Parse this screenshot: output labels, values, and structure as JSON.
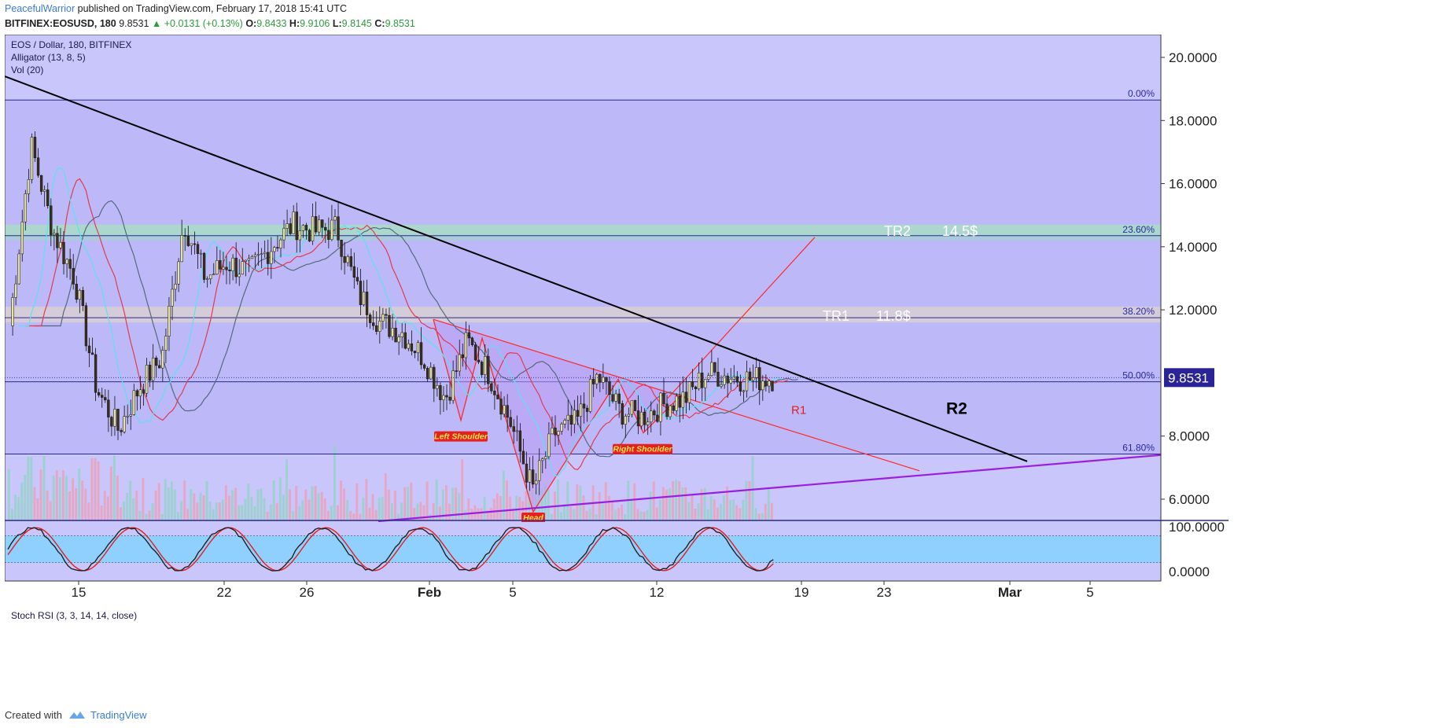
{
  "header": {
    "author": "PeacefulWarrior",
    "published_text": "published on TradingView.com, February 17, 2018 15:41 UTC",
    "symbol_line_prefix": "BITFINEX:EOSUSD, 180",
    "last": "9.8531",
    "change": "▲ +0.0131 (+0.13%)",
    "o_label": "O:",
    "o": "9.8433",
    "h_label": "H:",
    "h": "9.9106",
    "l_label": "L:",
    "l": "9.8145",
    "c_label": "C:",
    "c": "9.8531"
  },
  "legend": {
    "title": "EOS / Dollar, 180, BITFINEX",
    "indicator1": "Alligator (13, 8, 5)",
    "indicator2": "Vol (20)",
    "oscillator": "Stoch RSI (3, 3, 14, 14, close)"
  },
  "price_axis": {
    "ticks": [
      "20.0000",
      "18.0000",
      "16.0000",
      "14.0000",
      "12.0000",
      "8.0000",
      "6.0000"
    ],
    "tick_values": [
      20,
      18,
      16,
      14,
      12,
      8,
      6
    ],
    "current_price": "9.8531",
    "current_value": 9.8531
  },
  "osc_axis": {
    "ticks": [
      "100.0000",
      "0.0000"
    ],
    "tick_values": [
      100,
      0
    ]
  },
  "time_axis": {
    "labels": [
      "15",
      "22",
      "26",
      "Feb",
      "5",
      "12",
      "19",
      "23",
      "Mar",
      "5"
    ],
    "bold": [
      false,
      false,
      false,
      true,
      false,
      false,
      false,
      false,
      true,
      false
    ]
  },
  "fib_levels": [
    {
      "label": "0.00%",
      "value": 18.65
    },
    {
      "label": "23.60%",
      "value": 14.35
    },
    {
      "label": "38.20%",
      "value": 11.75
    },
    {
      "label": "50.00%",
      "value": 9.72
    },
    {
      "label": "61.80%",
      "value": 7.43
    }
  ],
  "annotations": {
    "tr2": "TR2",
    "tr2_price": "14.5$",
    "tr1": "TR1",
    "tr1_price": "11.8$",
    "r1": "R1",
    "r2": "R2",
    "left_shoulder": "Left Shoulder",
    "right_shoulder": "Right Shoulder",
    "head": "Head"
  },
  "colors": {
    "background": "#c8c6fa",
    "fib_zone": "#bdb8f7",
    "tr_band_green": "#a8dcc8",
    "tr_band_gray": "#d9cfd3",
    "trendline": "#000000",
    "neckline": "#ff2a2a",
    "support": "#9b1ee0",
    "osc_band": "#8fd0ff",
    "price_tag": "#2a2496"
  },
  "chart_data": {
    "type": "candlestick",
    "title": "EOS / Dollar, 180, BITFINEX",
    "close_series_approx": {
      "x": [
        "Jan 13",
        "Jan 14",
        "Jan 15",
        "Jan 16",
        "Jan 17",
        "Jan 18",
        "Jan 19",
        "Jan 20",
        "Jan 21",
        "Jan 22",
        "Jan 23",
        "Jan 24",
        "Jan 25",
        "Jan 26",
        "Jan 27",
        "Jan 28",
        "Jan 29",
        "Jan 30",
        "Jan 31",
        "Feb 1",
        "Feb 2",
        "Feb 3",
        "Feb 4",
        "Feb 5",
        "Feb 6",
        "Feb 7",
        "Feb 8",
        "Feb 9",
        "Feb 10",
        "Feb 11",
        "Feb 12",
        "Feb 13",
        "Feb 14",
        "Feb 15",
        "Feb 16",
        "Feb 17"
      ],
      "y": [
        11.5,
        17.2,
        14.5,
        13.0,
        9.5,
        8.2,
        9.6,
        10.5,
        14.8,
        13.0,
        13.5,
        13.2,
        14.0,
        14.7,
        14.5,
        14.6,
        12.5,
        11.6,
        11.3,
        10.5,
        9.2,
        11.0,
        10.0,
        8.4,
        6.3,
        8.1,
        8.4,
        9.9,
        8.8,
        8.6,
        9.0,
        9.2,
        10.0,
        9.9,
        9.8,
        9.85
      ]
    },
    "y_range": [
      5.3,
      21.0
    ],
    "osc_range": [
      0,
      100
    ]
  }
}
